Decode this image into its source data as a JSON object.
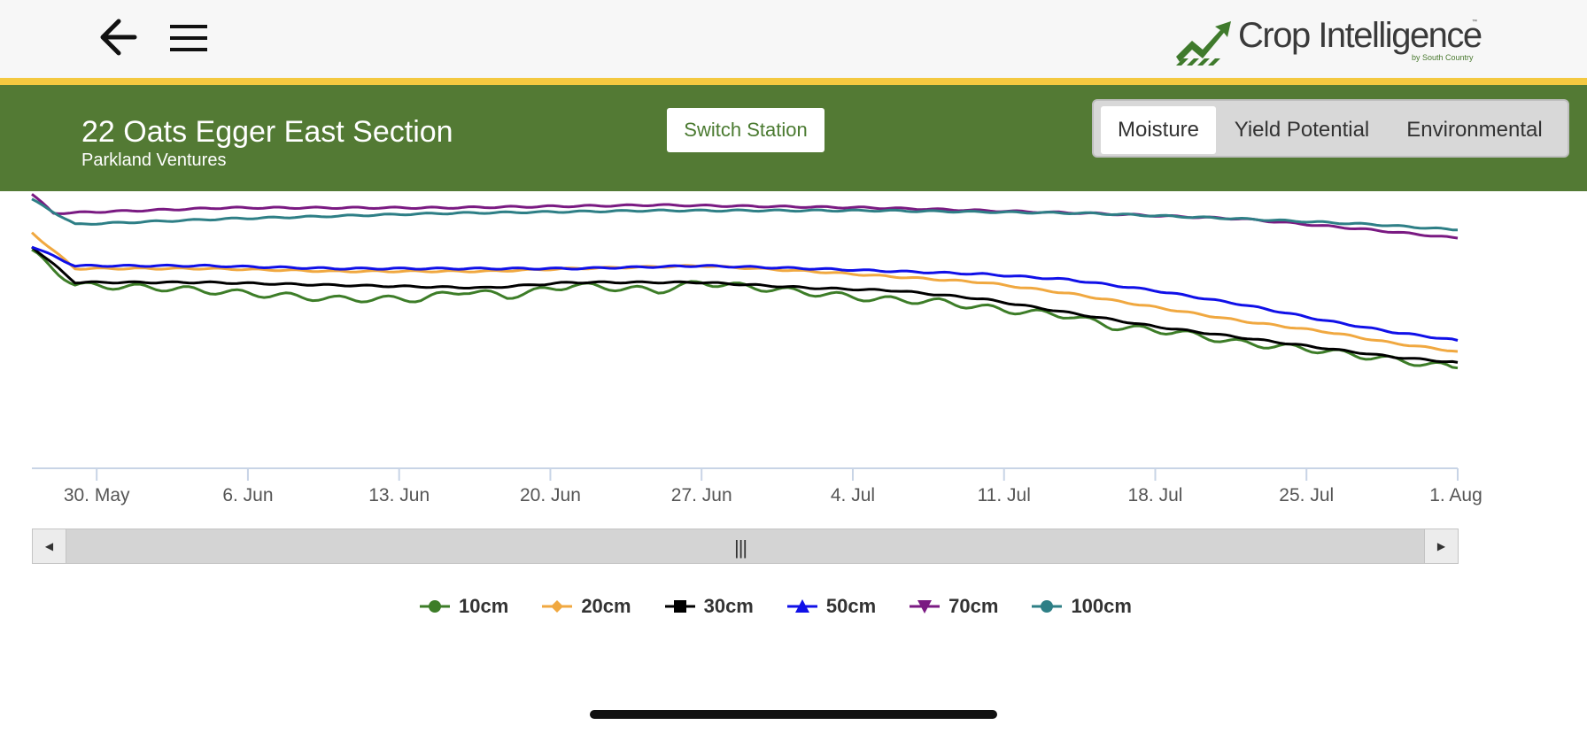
{
  "app": {
    "brand": "Crop Intelligence",
    "brand_sub": "by South Country",
    "brand_tm": "™",
    "colors": {
      "header": "#537a34",
      "stripe": "#f4c940",
      "brand_green": "#3f7a2c"
    }
  },
  "icons": {
    "back": "arrow-left-icon",
    "menu": "hamburger-menu-icon"
  },
  "station": {
    "name": "22 Oats Egger East Section",
    "owner": "Parkland Ventures",
    "switch_label": "Switch Station"
  },
  "tabs": [
    {
      "label": "Moisture",
      "active": true
    },
    {
      "label": "Yield Potential",
      "active": false
    },
    {
      "label": "Environmental",
      "active": false
    }
  ],
  "navigator": {
    "handle": "|||"
  },
  "chart_data": {
    "type": "line",
    "title": "",
    "xlabel": "",
    "ylabel": "",
    "x_ticks": [
      "30. May",
      "6. Jun",
      "13. Jun",
      "20. Jun",
      "27. Jun",
      "4. Jul",
      "11. Jul",
      "18. Jul",
      "25. Jul",
      "1. Aug"
    ],
    "x_day_range": [
      "2020-05-27",
      "2020-08-01"
    ],
    "y_range": [
      0,
      100
    ],
    "legend_position": "bottom",
    "series": [
      {
        "name": "10cm",
        "color": "#3d7d28",
        "marker": "circle",
        "x": [
          "2020-05-27",
          "2020-05-29",
          "2020-06-02",
          "2020-06-06",
          "2020-06-10",
          "2020-06-14",
          "2020-06-16",
          "2020-06-18",
          "2020-06-21",
          "2020-06-25",
          "2020-06-27",
          "2020-07-01",
          "2020-07-05",
          "2020-07-08",
          "2020-07-11",
          "2020-07-14",
          "2020-07-16",
          "2020-07-19",
          "2020-07-22",
          "2020-07-25",
          "2020-07-28",
          "2020-08-01"
        ],
        "y": [
          78,
          66,
          65,
          63,
          61,
          61,
          64,
          62,
          66,
          64,
          67,
          64,
          61,
          60,
          57,
          55,
          51,
          49,
          45,
          43,
          40,
          36
        ]
      },
      {
        "name": "20cm",
        "color": "#f0a840",
        "marker": "diamond",
        "x": [
          "2020-05-27",
          "2020-05-29",
          "2020-06-04",
          "2020-06-10",
          "2020-06-17",
          "2020-06-21",
          "2020-06-27",
          "2020-07-02",
          "2020-07-06",
          "2020-07-10",
          "2020-07-14",
          "2020-07-18",
          "2020-07-22",
          "2020-07-26",
          "2020-07-29",
          "2020-08-01"
        ],
        "y": [
          85,
          72,
          72,
          71,
          71,
          72,
          73,
          71,
          69,
          67,
          63,
          58,
          53,
          49,
          45,
          42
        ]
      },
      {
        "name": "30cm",
        "color": "#000000",
        "marker": "square",
        "x": [
          "2020-05-27",
          "2020-05-29",
          "2020-06-04",
          "2020-06-10",
          "2020-06-17",
          "2020-06-21",
          "2020-06-27",
          "2020-07-02",
          "2020-07-06",
          "2020-07-10",
          "2020-07-14",
          "2020-07-18",
          "2020-07-22",
          "2020-07-26",
          "2020-07-29",
          "2020-08-01"
        ],
        "y": [
          80,
          67,
          67,
          66,
          65,
          67,
          67,
          65,
          64,
          61,
          56,
          51,
          47,
          43,
          40,
          38
        ]
      },
      {
        "name": "50cm",
        "color": "#1010e8",
        "marker": "triangle-up",
        "x": [
          "2020-05-27",
          "2020-05-29",
          "2020-06-04",
          "2020-06-10",
          "2020-06-17",
          "2020-06-21",
          "2020-06-27",
          "2020-07-02",
          "2020-07-06",
          "2020-07-10",
          "2020-07-14",
          "2020-07-18",
          "2020-07-22",
          "2020-07-26",
          "2020-07-29",
          "2020-08-01"
        ],
        "y": [
          80,
          73,
          73,
          72,
          72,
          72,
          73,
          72,
          71,
          70,
          68,
          64,
          59,
          53,
          49,
          46
        ]
      },
      {
        "name": "70cm",
        "color": "#7a1a82",
        "marker": "triangle-down",
        "x": [
          "2020-05-27",
          "2020-05-28",
          "2020-06-05",
          "2020-06-15",
          "2020-06-25",
          "2020-07-05",
          "2020-07-15",
          "2020-07-22",
          "2020-07-28",
          "2020-08-01"
        ],
        "y": [
          99,
          92,
          94,
          94,
          95,
          94,
          92,
          90,
          86,
          83
        ]
      },
      {
        "name": "100cm",
        "color": "#2e7f86",
        "marker": "circle",
        "x": [
          "2020-05-27",
          "2020-05-29",
          "2020-06-05",
          "2020-06-15",
          "2020-06-25",
          "2020-07-05",
          "2020-07-15",
          "2020-07-22",
          "2020-07-28",
          "2020-08-01"
        ],
        "y": [
          97,
          88,
          90,
          92,
          93,
          93,
          92,
          90,
          88,
          86
        ]
      }
    ]
  }
}
